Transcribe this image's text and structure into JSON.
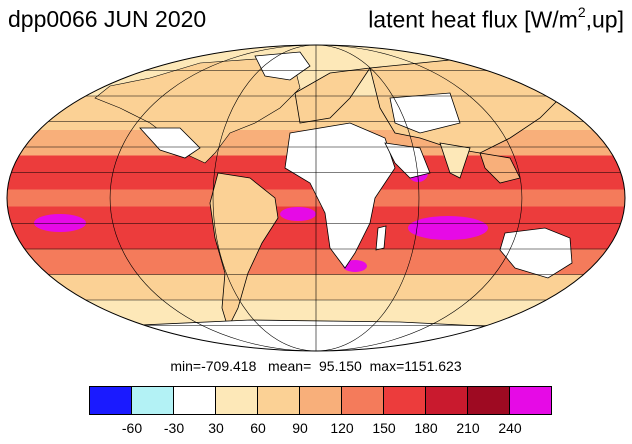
{
  "title_left": "dpp0066 JUN 2020",
  "title_right_main": "latent heat flux [W/m",
  "title_right_sup": "2",
  "title_right_end": ",up]",
  "stats": {
    "text": "min=-709.418   mean=  95.150  max=1151.623",
    "min": -709.418,
    "mean": 95.15,
    "max": 1151.623
  },
  "colorbar": {
    "colors": [
      "#1a1aff",
      "#b3f2f5",
      "#ffffff",
      "#fde8b8",
      "#fbd195",
      "#f8af7a",
      "#f47b5b",
      "#ec3c3c",
      "#c91a2e",
      "#9e0a22",
      "#e60ae6"
    ],
    "labels": [
      "-60",
      "-30",
      "30",
      "60",
      "90",
      "120",
      "150",
      "180",
      "210",
      "240"
    ]
  },
  "map": {
    "projection": "mollweide",
    "land_color": "#ffffff",
    "ocean_bands": [
      {
        "lat_from": 90,
        "lat_to": 60,
        "color": "#fde8b8"
      },
      {
        "lat_from": 60,
        "lat_to": 40,
        "color": "#fbd195"
      },
      {
        "lat_from": 40,
        "lat_to": 25,
        "color": "#f8af7a"
      },
      {
        "lat_from": 25,
        "lat_to": 5,
        "color": "#ec3c3c"
      },
      {
        "lat_from": 5,
        "lat_to": -5,
        "color": "#f47b5b"
      },
      {
        "lat_from": -5,
        "lat_to": -30,
        "color": "#ec3c3c"
      },
      {
        "lat_from": -30,
        "lat_to": -45,
        "color": "#f47b5b"
      },
      {
        "lat_from": -45,
        "lat_to": -60,
        "color": "#fbd195"
      },
      {
        "lat_from": -60,
        "lat_to": -90,
        "color": "#fde8b8"
      }
    ]
  }
}
